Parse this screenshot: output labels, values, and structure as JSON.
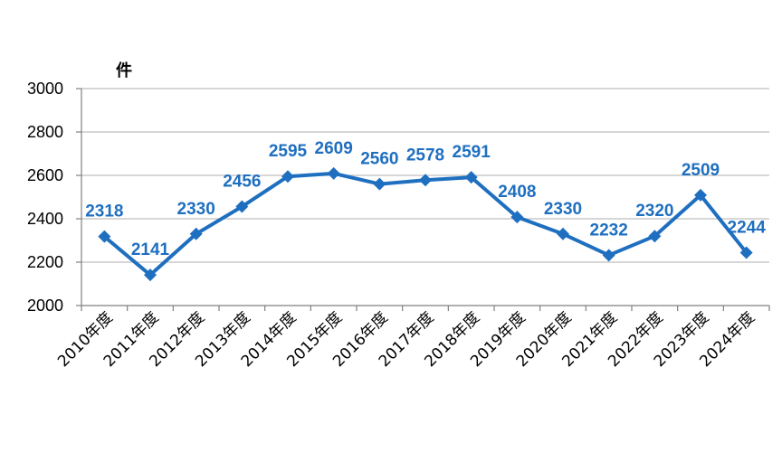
{
  "chart_data": {
    "type": "line",
    "title": "",
    "xlabel": "",
    "ylabel": "件",
    "ylim": [
      2000,
      3000
    ],
    "yticks": [
      "2000",
      "2200",
      "2400",
      "2600",
      "2800",
      "3000"
    ],
    "grid": true,
    "legend": "none",
    "colors": {
      "series": "#1f6fc0",
      "label": "#1f6fc0",
      "grid": "#bfbfbf",
      "axis": "#808080"
    },
    "categories": [
      "2010年度",
      "2011年度",
      "2012年度",
      "2013年度",
      "2014年度",
      "2015年度",
      "2016年度",
      "2017年度",
      "2018年度",
      "2019年度",
      "2020年度",
      "2021年度",
      "2022年度",
      "2023年度",
      "2024年度"
    ],
    "series": [
      {
        "values": [
          2318,
          2141,
          2330,
          2456,
          2595,
          2609,
          2560,
          2578,
          2591,
          2408,
          2330,
          2232,
          2320,
          2509,
          2244
        ],
        "labels": [
          "2318",
          "2141",
          "2330",
          "2456",
          "2595",
          "2609",
          "2560",
          "2578",
          "2591",
          "2408",
          "2330",
          "2232",
          "2320",
          "2509",
          "2244"
        ],
        "marker": "diamond"
      }
    ]
  }
}
